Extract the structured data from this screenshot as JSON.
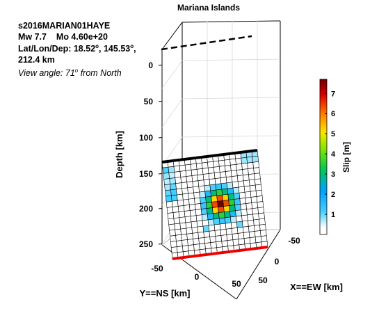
{
  "title": "Mariana Islands",
  "info": {
    "event_id": "s2016MARIAN01HAYE",
    "magnitude": "Mw 7.7",
    "moment": "Mo 4.60e+20",
    "latlondep_label": "Lat/Lon/Dep: ",
    "lat": "18.52",
    "lon": "145.53",
    "deg_mark": "o",
    "dep": "212.4 km",
    "view_prefix": "View angle:  71",
    "view_suffix": " from North"
  },
  "chart_data": {
    "type": "heatmap",
    "title": "Mariana Islands",
    "xlabel": "X==EW [km]",
    "ylabel": "Y==NS [km]",
    "zlabel": "Depth [km]",
    "x_ticks": [
      "-50",
      "0",
      "50"
    ],
    "y_ticks": [
      "-50",
      "0",
      "50"
    ],
    "z_ticks": [
      "0",
      "50",
      "100",
      "150",
      "200",
      "250"
    ],
    "colorbar": {
      "label": "Slip [m]",
      "ticks": [
        "1",
        "2",
        "3",
        "4",
        "5",
        "6",
        "7"
      ],
      "range": [
        0,
        7.7
      ]
    },
    "grid": {
      "cols": 17,
      "rows": 17
    },
    "slip_peak": {
      "row": 8,
      "col": 9,
      "value": 7.7
    },
    "depth_range_km": [
      140,
      265
    ]
  }
}
